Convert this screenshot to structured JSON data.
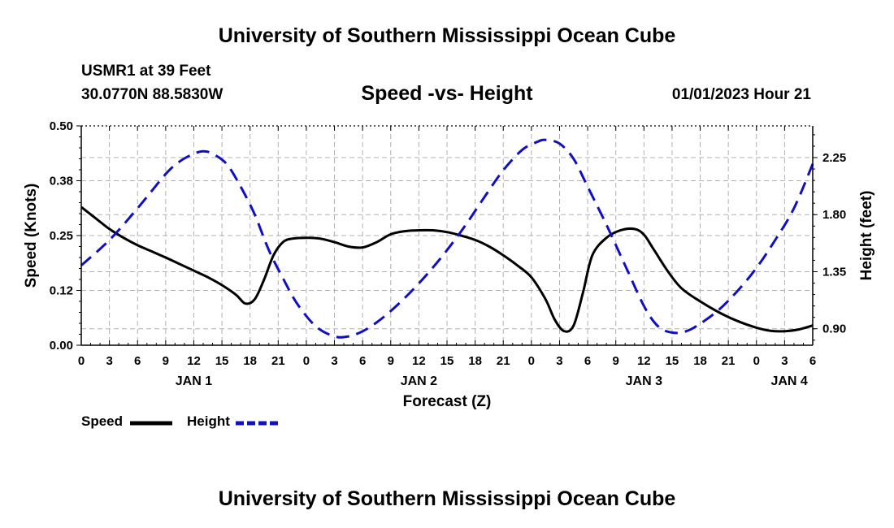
{
  "header": {
    "title": "University of Southern Mississippi Ocean Cube",
    "station": "USMR1 at 39 Feet",
    "coordinates": "30.0770N  88.5830W",
    "subtitle": "Speed -vs- Height",
    "datetime": "01/01/2023 Hour 21"
  },
  "footer": {
    "title": "University of Southern Mississippi Ocean Cube"
  },
  "legend": {
    "speed_label": "Speed",
    "height_label": "Height"
  },
  "chart_data": {
    "type": "line",
    "title": "Speed -vs- Height",
    "xlabel": "Forecast (Z)",
    "ylabel": "Speed (Knots)",
    "y2label": "Height (feet)",
    "grid": true,
    "x_range_hours": [
      0,
      78
    ],
    "x_tick_step_hours": 3,
    "x_ticks": [
      "0",
      "3",
      "6",
      "9",
      "12",
      "15",
      "18",
      "21",
      "0",
      "3",
      "6",
      "9",
      "12",
      "15",
      "18",
      "21",
      "0",
      "3",
      "6",
      "9",
      "12",
      "15",
      "18",
      "21",
      "0",
      "3",
      "6"
    ],
    "day_labels": [
      {
        "label": "JAN 1",
        "hour": 12
      },
      {
        "label": "JAN 2",
        "hour": 36
      },
      {
        "label": "JAN 3",
        "hour": 60
      },
      {
        "label": "JAN 4",
        "hour": 75.5
      }
    ],
    "ylim": [
      0,
      0.5
    ],
    "y_ticks": [
      "0.00",
      "0.12",
      "0.25",
      "0.38",
      "0.50"
    ],
    "y2lim": [
      0.77,
      2.5
    ],
    "y2_ticks": [
      "0.90",
      "1.35",
      "1.80",
      "2.25"
    ],
    "colors": {
      "speed": "#000000",
      "height": "#1010c0",
      "grid": "#b0b0b0"
    },
    "series": [
      {
        "name": "Speed",
        "axis": "left",
        "style": "solid",
        "x": [
          0,
          1.5,
          3,
          4.5,
          6,
          7.5,
          9,
          10.5,
          12,
          13.5,
          15,
          16.5,
          17.5,
          18.5,
          19.5,
          20.5,
          21.5,
          22.5,
          24,
          25.5,
          27,
          28.5,
          30,
          31.5,
          33,
          34.5,
          36,
          37.5,
          39,
          40.5,
          42,
          43.5,
          45,
          46.5,
          48,
          49.5,
          50.5,
          51.5,
          52.5,
          53.5,
          54.5,
          56,
          57.5,
          59,
          60,
          61,
          62.5,
          64,
          66,
          68,
          70,
          72,
          73.5,
          75,
          76.5,
          78
        ],
        "values": [
          0.315,
          0.29,
          0.265,
          0.245,
          0.228,
          0.214,
          0.2,
          0.185,
          0.17,
          0.155,
          0.137,
          0.115,
          0.095,
          0.105,
          0.15,
          0.205,
          0.235,
          0.243,
          0.245,
          0.243,
          0.235,
          0.225,
          0.223,
          0.235,
          0.253,
          0.26,
          0.262,
          0.262,
          0.258,
          0.25,
          0.24,
          0.225,
          0.205,
          0.182,
          0.155,
          0.105,
          0.058,
          0.032,
          0.045,
          0.12,
          0.205,
          0.245,
          0.262,
          0.265,
          0.252,
          0.22,
          0.17,
          0.13,
          0.1,
          0.075,
          0.055,
          0.04,
          0.033,
          0.032,
          0.036,
          0.045
        ]
      },
      {
        "name": "Height",
        "axis": "right",
        "style": "dashed",
        "x": [
          0,
          3,
          6,
          9,
          10.5,
          12,
          13,
          14,
          15.5,
          17,
          18.5,
          20,
          21.5,
          23,
          25,
          27,
          28.5,
          30,
          31.5,
          33,
          35,
          37,
          39,
          41,
          43,
          45,
          47,
          48.5,
          49.5,
          51,
          52.5,
          54,
          56,
          58,
          60,
          61.5,
          63,
          64.5,
          66,
          68,
          70,
          72,
          74,
          76,
          78
        ],
        "values": [
          1.4,
          1.6,
          1.85,
          2.12,
          2.22,
          2.28,
          2.3,
          2.28,
          2.2,
          2.02,
          1.8,
          1.52,
          1.3,
          1.1,
          0.92,
          0.84,
          0.84,
          0.88,
          0.95,
          1.04,
          1.18,
          1.34,
          1.52,
          1.72,
          1.94,
          2.15,
          2.31,
          2.37,
          2.39,
          2.36,
          2.24,
          2.02,
          1.72,
          1.4,
          1.08,
          0.92,
          0.87,
          0.88,
          0.94,
          1.05,
          1.2,
          1.38,
          1.6,
          1.85,
          2.2
        ]
      }
    ]
  }
}
